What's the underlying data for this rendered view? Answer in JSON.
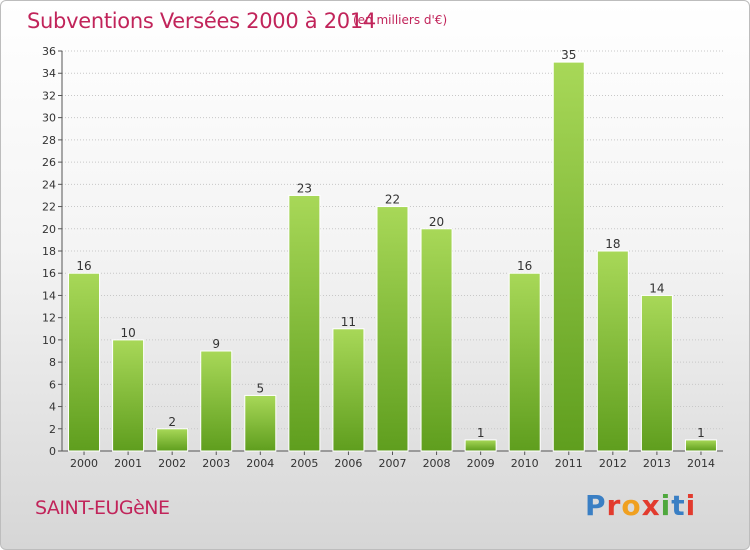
{
  "header": {
    "title": "Subventions Versées 2000 à 2014",
    "subtitle": "(en milliers d'€)"
  },
  "footer": {
    "commune": "SAINT-EUGèNE",
    "logo_text": "Proxiti",
    "logo_colors": [
      "#3a7fc4",
      "#e23b2e",
      "#f0a020",
      "#e23b2e",
      "#4fa83d",
      "#3a7fc4",
      "#e23b2e"
    ]
  },
  "colors": {
    "bar_light": "#a8d858",
    "bar_dark": "#5f9e1e",
    "grid": "#c8c8c8",
    "title": "#c1245a"
  },
  "chart_data": {
    "type": "bar",
    "title": "Subventions Versées 2000 à 2014",
    "subtitle": "(en milliers d'€)",
    "categories": [
      "2000",
      "2001",
      "2002",
      "2003",
      "2004",
      "2005",
      "2006",
      "2007",
      "2008",
      "2009",
      "2010",
      "2011",
      "2012",
      "2013",
      "2014"
    ],
    "values": [
      16,
      10,
      2,
      9,
      5,
      23,
      11,
      22,
      20,
      1,
      16,
      35,
      18,
      14,
      1
    ],
    "ylim": [
      0,
      36
    ],
    "yticks": [
      0,
      2,
      4,
      6,
      8,
      10,
      12,
      14,
      16,
      18,
      20,
      22,
      24,
      26,
      28,
      30,
      32,
      34,
      36
    ],
    "grid": true,
    "data_labels": true
  }
}
